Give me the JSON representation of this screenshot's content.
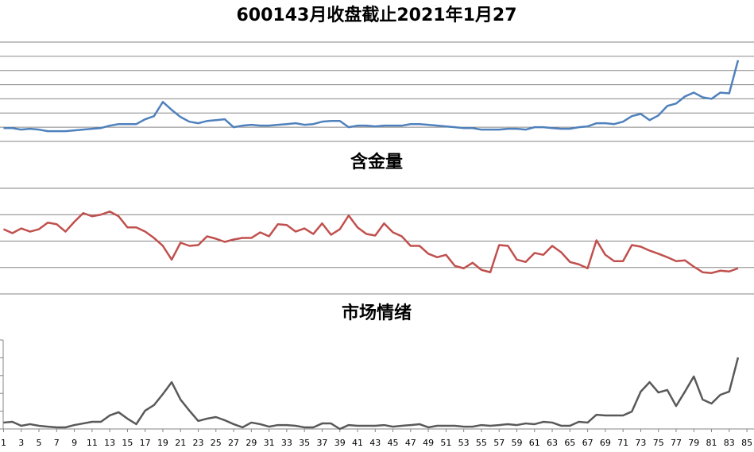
{
  "chart_data": [
    {
      "type": "line",
      "title": "600143月收盘截止2021年1月27",
      "x": [
        1,
        2,
        3,
        4,
        5,
        6,
        7,
        8,
        9,
        10,
        11,
        12,
        13,
        14,
        15,
        16,
        17,
        18,
        19,
        20,
        21,
        22,
        23,
        24,
        25,
        26,
        27,
        28,
        29,
        30,
        31,
        32,
        33,
        34,
        35,
        36,
        37,
        38,
        39,
        40,
        41,
        42,
        43,
        44,
        45,
        46,
        47,
        48,
        49,
        50,
        51,
        52,
        53,
        54,
        55,
        56,
        57,
        58,
        59,
        60,
        61,
        62,
        63,
        64,
        65,
        66,
        67,
        68,
        69,
        70,
        71,
        72,
        73,
        74,
        75,
        76,
        77,
        78,
        79,
        80,
        81,
        82,
        83,
        84
      ],
      "xlim": [
        0.6,
        85.8
      ],
      "ylim": [
        0,
        7
      ],
      "yticks": [
        0,
        1,
        2,
        3,
        4,
        5,
        6,
        7
      ],
      "grid": true,
      "tick_labels": false,
      "series": [
        {
          "color": "#4f81bd",
          "values": [
            0.94,
            0.94,
            0.83,
            0.89,
            0.83,
            0.72,
            0.72,
            0.72,
            0.78,
            0.83,
            0.89,
            0.94,
            1.11,
            1.22,
            1.22,
            1.22,
            1.56,
            1.78,
            2.78,
            2.22,
            1.72,
            1.39,
            1.28,
            1.44,
            1.5,
            1.56,
            1.0,
            1.11,
            1.17,
            1.11,
            1.11,
            1.17,
            1.22,
            1.28,
            1.17,
            1.22,
            1.39,
            1.44,
            1.44,
            1.0,
            1.11,
            1.11,
            1.06,
            1.11,
            1.11,
            1.11,
            1.22,
            1.22,
            1.17,
            1.11,
            1.06,
            1.0,
            0.94,
            0.94,
            0.83,
            0.83,
            0.83,
            0.89,
            0.89,
            0.83,
            1.0,
            1.0,
            0.94,
            0.89,
            0.89,
            1.0,
            1.06,
            1.28,
            1.28,
            1.22,
            1.39,
            1.78,
            1.94,
            1.5,
            1.83,
            2.5,
            2.67,
            3.17,
            3.44,
            3.11,
            3.0,
            3.44,
            3.39,
            5.72
          ]
        }
      ]
    },
    {
      "type": "line",
      "title": "含金量",
      "x": [
        1,
        2,
        3,
        4,
        5,
        6,
        7,
        8,
        9,
        10,
        11,
        12,
        13,
        14,
        15,
        16,
        17,
        18,
        19,
        20,
        21,
        22,
        23,
        24,
        25,
        26,
        27,
        28,
        29,
        30,
        31,
        32,
        33,
        34,
        35,
        36,
        37,
        38,
        39,
        40,
        41,
        42,
        43,
        44,
        45,
        46,
        47,
        48,
        49,
        50,
        51,
        52,
        53,
        54,
        55,
        56,
        57,
        58,
        59,
        60,
        61,
        62,
        63,
        64,
        65,
        66,
        67,
        68,
        69,
        70,
        71,
        72,
        73,
        74,
        75,
        76,
        77,
        78,
        79,
        80,
        81,
        82,
        83,
        84
      ],
      "xlim": [
        0.6,
        85.8
      ],
      "ylim": [
        0,
        4
      ],
      "yticks": [
        0,
        1,
        2,
        3,
        4
      ],
      "grid": true,
      "tick_labels": false,
      "series": [
        {
          "color": "#c0504d",
          "values": [
            2.45,
            2.3,
            2.48,
            2.36,
            2.45,
            2.7,
            2.64,
            2.36,
            2.73,
            3.06,
            2.94,
            3.0,
            3.12,
            2.94,
            2.52,
            2.52,
            2.36,
            2.12,
            1.82,
            1.3,
            1.94,
            1.82,
            1.85,
            2.18,
            2.09,
            1.97,
            2.06,
            2.12,
            2.12,
            2.33,
            2.18,
            2.64,
            2.61,
            2.36,
            2.48,
            2.27,
            2.67,
            2.24,
            2.45,
            2.97,
            2.52,
            2.27,
            2.21,
            2.67,
            2.33,
            2.18,
            1.82,
            1.82,
            1.52,
            1.39,
            1.48,
            1.06,
            0.97,
            1.18,
            0.91,
            0.82,
            1.85,
            1.82,
            1.3,
            1.21,
            1.55,
            1.48,
            1.82,
            1.58,
            1.21,
            1.12,
            0.97,
            2.03,
            1.48,
            1.24,
            1.24,
            1.85,
            1.79,
            1.64,
            1.52,
            1.39,
            1.24,
            1.27,
            1.03,
            0.82,
            0.79,
            0.88,
            0.85,
            0.97
          ]
        }
      ]
    },
    {
      "type": "line",
      "title": "市场情绪",
      "x": [
        1,
        2,
        3,
        4,
        5,
        6,
        7,
        8,
        9,
        10,
        11,
        12,
        13,
        14,
        15,
        16,
        17,
        18,
        19,
        20,
        21,
        22,
        23,
        24,
        25,
        26,
        27,
        28,
        29,
        30,
        31,
        32,
        33,
        34,
        35,
        36,
        37,
        38,
        39,
        40,
        41,
        42,
        43,
        44,
        45,
        46,
        47,
        48,
        49,
        50,
        51,
        52,
        53,
        54,
        55,
        56,
        57,
        58,
        59,
        60,
        61,
        62,
        63,
        64,
        65,
        66,
        67,
        68,
        69,
        70,
        71,
        72,
        73,
        74,
        75,
        76,
        77,
        78,
        79,
        80,
        81,
        82,
        83,
        84
      ],
      "xlim": [
        0.6,
        85.8
      ],
      "xticks": [
        1,
        3,
        5,
        7,
        9,
        11,
        13,
        15,
        17,
        19,
        21,
        23,
        25,
        27,
        29,
        31,
        33,
        35,
        37,
        39,
        41,
        43,
        45,
        47,
        49,
        51,
        53,
        55,
        57,
        59,
        61,
        63,
        65,
        67,
        69,
        71,
        73,
        75,
        77,
        79,
        81,
        83,
        85
      ],
      "ylim": [
        0,
        5
      ],
      "yticks": [
        0,
        1,
        2,
        3,
        4,
        5
      ],
      "grid": false,
      "tick_labels": false,
      "axis_lines": true,
      "series": [
        {
          "color": "#595959",
          "values": [
            0.36,
            0.4,
            0.18,
            0.27,
            0.18,
            0.13,
            0.09,
            0.09,
            0.22,
            0.31,
            0.4,
            0.4,
            0.76,
            0.94,
            0.58,
            0.27,
            1.03,
            1.34,
            1.96,
            2.63,
            1.65,
            1.03,
            0.45,
            0.58,
            0.67,
            0.49,
            0.27,
            0.09,
            0.36,
            0.27,
            0.13,
            0.22,
            0.22,
            0.18,
            0.09,
            0.09,
            0.31,
            0.31,
            0,
            0.22,
            0.18,
            0.18,
            0.18,
            0.22,
            0.13,
            0.18,
            0.22,
            0.27,
            0.09,
            0.18,
            0.18,
            0.18,
            0.13,
            0.13,
            0.22,
            0.18,
            0.22,
            0.27,
            0.22,
            0.31,
            0.27,
            0.4,
            0.36,
            0.18,
            0.18,
            0.4,
            0.36,
            0.8,
            0.76,
            0.76,
            0.76,
            0.98,
            2.1,
            2.63,
            2.05,
            2.19,
            1.29,
            2.1,
            2.95,
            1.65,
            1.43,
            1.92,
            2.1,
            4.02
          ]
        }
      ]
    }
  ]
}
